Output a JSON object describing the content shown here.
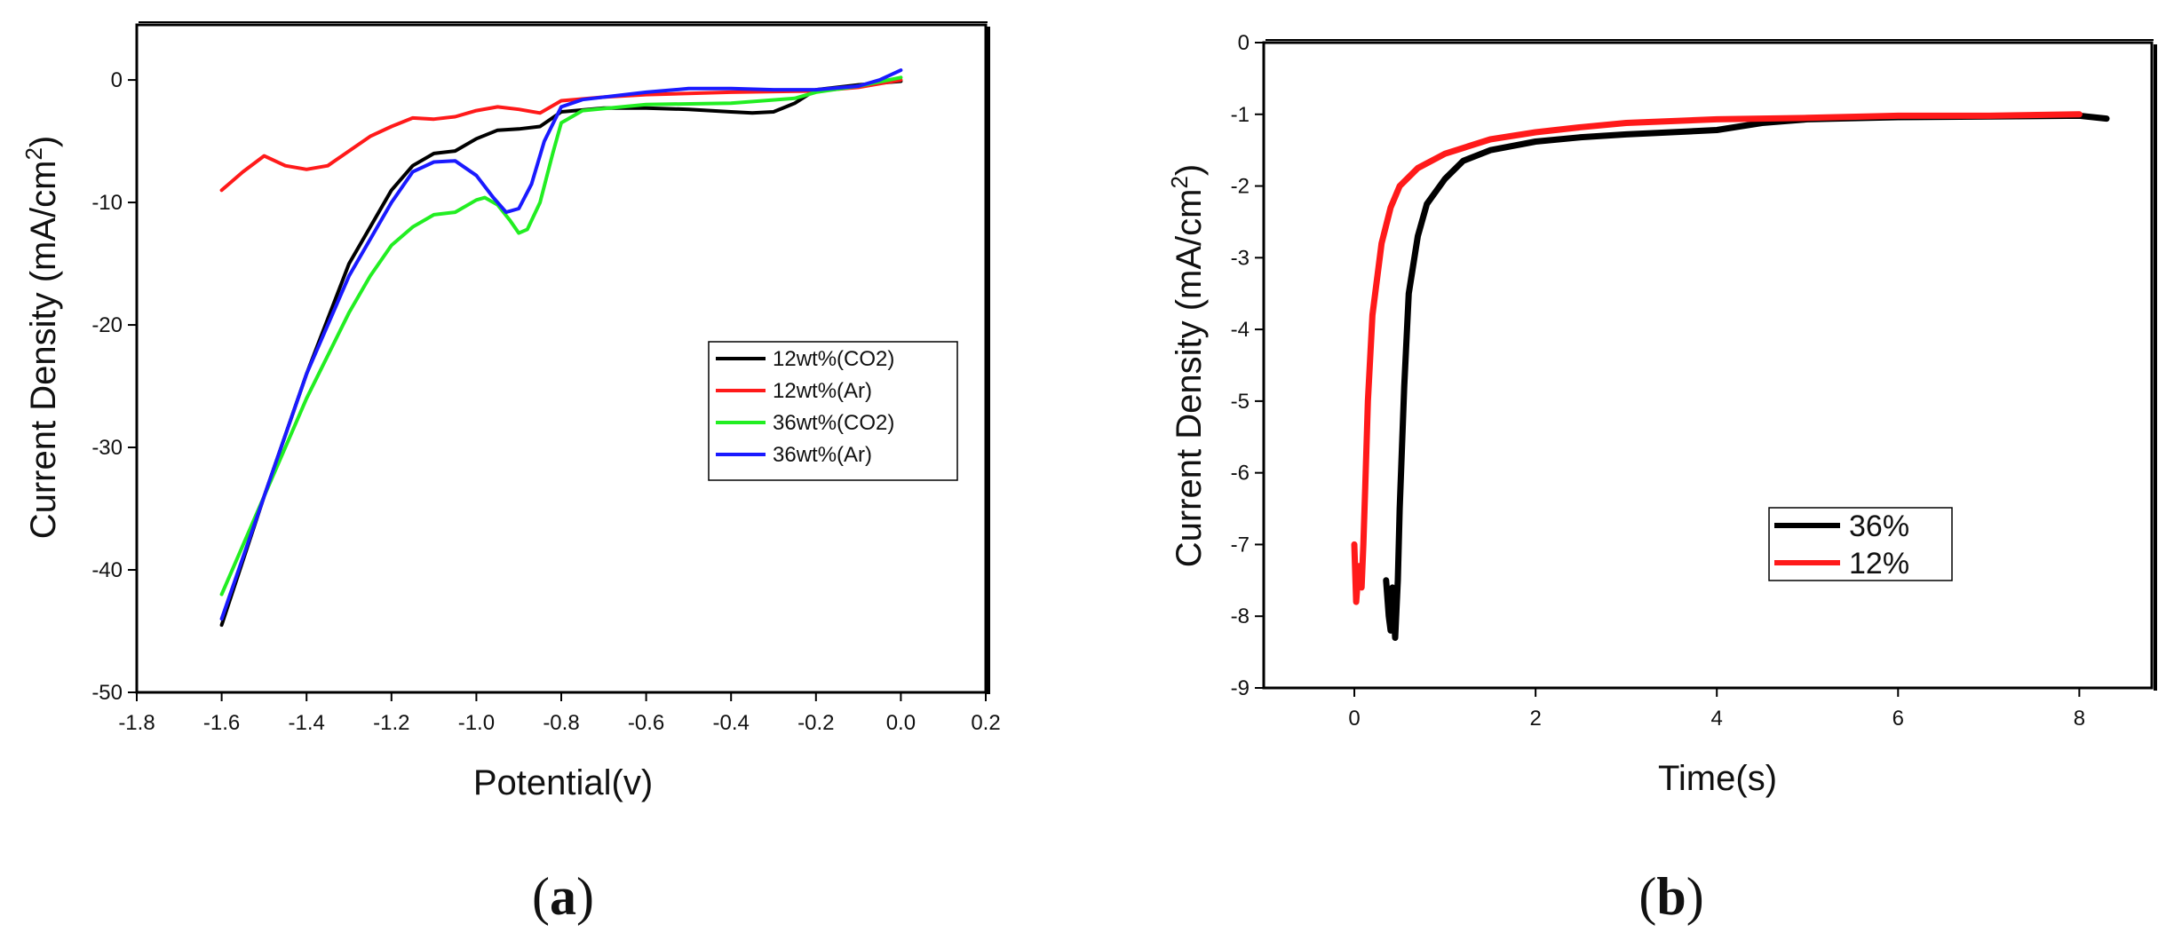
{
  "panels": [
    {
      "caption": {
        "open": "(",
        "letter": "a",
        "close": ")"
      },
      "chart_data": {
        "type": "line",
        "title": "",
        "xlabel": "Potential(v)",
        "ylabel": "Current Density (mA/cm",
        "ylabel_sup": "2",
        "ylabel_close": ")",
        "xlim": [
          -1.8,
          0.2
        ],
        "ylim": [
          -50,
          4.5
        ],
        "xticks": [
          -1.8,
          -1.6,
          -1.4,
          -1.2,
          -1.0,
          -0.8,
          -0.6,
          -0.4,
          -0.2,
          0.0,
          0.2
        ],
        "xtick_labels": [
          "-1.8",
          "-1.6",
          "-1.4",
          "-1.2",
          "-1.0",
          "-0.8",
          "-0.6",
          "-0.4",
          "-0.2",
          "0.0",
          "0.2"
        ],
        "yticks": [
          -50,
          -40,
          -30,
          -20,
          -10,
          0
        ],
        "ytick_labels": [
          "-50",
          "-40",
          "-30",
          "-20",
          "-10",
          "0"
        ],
        "legend_position": "center-right",
        "series": [
          {
            "name": "12wt%(CO2)",
            "color": "#000000",
            "points": [
              [
                -1.6,
                -44.5
              ],
              [
                -1.5,
                -34
              ],
              [
                -1.4,
                -24
              ],
              [
                -1.3,
                -15
              ],
              [
                -1.2,
                -9
              ],
              [
                -1.15,
                -7
              ],
              [
                -1.1,
                -6
              ],
              [
                -1.05,
                -5.8
              ],
              [
                -1.0,
                -4.8
              ],
              [
                -0.95,
                -4.1
              ],
              [
                -0.9,
                -4.0
              ],
              [
                -0.85,
                -3.8
              ],
              [
                -0.8,
                -2.6
              ],
              [
                -0.7,
                -2.3
              ],
              [
                -0.6,
                -2.3
              ],
              [
                -0.5,
                -2.4
              ],
              [
                -0.4,
                -2.6
              ],
              [
                -0.35,
                -2.7
              ],
              [
                -0.3,
                -2.6
              ],
              [
                -0.25,
                -1.9
              ],
              [
                -0.2,
                -0.8
              ],
              [
                -0.1,
                -0.4
              ],
              [
                0.0,
                -0.1
              ]
            ]
          },
          {
            "name": "12wt%(Ar)",
            "color": "#ff1a1a",
            "points": [
              [
                -1.6,
                -9
              ],
              [
                -1.55,
                -7.5
              ],
              [
                -1.5,
                -6.2
              ],
              [
                -1.45,
                -7
              ],
              [
                -1.4,
                -7.3
              ],
              [
                -1.35,
                -7
              ],
              [
                -1.3,
                -5.8
              ],
              [
                -1.25,
                -4.6
              ],
              [
                -1.2,
                -3.8
              ],
              [
                -1.15,
                -3.1
              ],
              [
                -1.1,
                -3.2
              ],
              [
                -1.05,
                -3.0
              ],
              [
                -1.0,
                -2.5
              ],
              [
                -0.95,
                -2.2
              ],
              [
                -0.9,
                -2.4
              ],
              [
                -0.85,
                -2.7
              ],
              [
                -0.8,
                -1.7
              ],
              [
                -0.7,
                -1.4
              ],
              [
                -0.6,
                -1.2
              ],
              [
                -0.5,
                -1.1
              ],
              [
                -0.4,
                -1.0
              ],
              [
                -0.2,
                -0.9
              ],
              [
                -0.1,
                -0.6
              ],
              [
                0.0,
                0.0
              ]
            ]
          },
          {
            "name": "36wt%(CO2)",
            "color": "#22ee22",
            "points": [
              [
                -1.6,
                -42
              ],
              [
                -1.5,
                -34
              ],
              [
                -1.4,
                -26
              ],
              [
                -1.3,
                -19
              ],
              [
                -1.25,
                -16
              ],
              [
                -1.2,
                -13.5
              ],
              [
                -1.15,
                -12
              ],
              [
                -1.1,
                -11
              ],
              [
                -1.05,
                -10.8
              ],
              [
                -1.0,
                -9.8
              ],
              [
                -0.98,
                -9.6
              ],
              [
                -0.95,
                -10.2
              ],
              [
                -0.92,
                -11.5
              ],
              [
                -0.9,
                -12.5
              ],
              [
                -0.88,
                -12.2
              ],
              [
                -0.85,
                -10
              ],
              [
                -0.82,
                -6
              ],
              [
                -0.8,
                -3.5
              ],
              [
                -0.75,
                -2.5
              ],
              [
                -0.6,
                -2.0
              ],
              [
                -0.4,
                -1.9
              ],
              [
                -0.25,
                -1.5
              ],
              [
                -0.2,
                -1.0
              ],
              [
                -0.1,
                -0.5
              ],
              [
                0.0,
                0.2
              ]
            ]
          },
          {
            "name": "36wt%(Ar)",
            "color": "#1a1aff",
            "points": [
              [
                -1.6,
                -44
              ],
              [
                -1.5,
                -34
              ],
              [
                -1.4,
                -24
              ],
              [
                -1.3,
                -16
              ],
              [
                -1.2,
                -10
              ],
              [
                -1.15,
                -7.5
              ],
              [
                -1.1,
                -6.7
              ],
              [
                -1.05,
                -6.6
              ],
              [
                -1.0,
                -7.8
              ],
              [
                -0.96,
                -9.6
              ],
              [
                -0.93,
                -10.8
              ],
              [
                -0.9,
                -10.5
              ],
              [
                -0.87,
                -8.5
              ],
              [
                -0.84,
                -5
              ],
              [
                -0.8,
                -2.2
              ],
              [
                -0.75,
                -1.6
              ],
              [
                -0.6,
                -1.0
              ],
              [
                -0.5,
                -0.7
              ],
              [
                -0.4,
                -0.7
              ],
              [
                -0.3,
                -0.8
              ],
              [
                -0.2,
                -0.8
              ],
              [
                -0.1,
                -0.5
              ],
              [
                -0.05,
                0.0
              ],
              [
                0.0,
                0.8
              ]
            ]
          }
        ]
      }
    },
    {
      "caption": {
        "open": "(",
        "letter": "b",
        "close": ")"
      },
      "chart_data": {
        "type": "line",
        "title": "",
        "xlabel": "Time(s)",
        "ylabel": "Current Density (mA/cm",
        "ylabel_sup": "2",
        "ylabel_close": ")",
        "xlim": [
          -1.0,
          8.8
        ],
        "ylim": [
          -9,
          0
        ],
        "xticks": [
          0,
          2,
          4,
          6,
          8
        ],
        "xtick_labels": [
          "0",
          "2",
          "4",
          "6",
          "8"
        ],
        "yticks": [
          -9,
          -8,
          -7,
          -6,
          -5,
          -4,
          -3,
          -2,
          -1,
          0
        ],
        "ytick_labels": [
          "-9",
          "-8",
          "-7",
          "-6",
          "-5",
          "-4",
          "-3",
          "-2",
          "-1",
          "0"
        ],
        "legend_position": "center-right",
        "series": [
          {
            "name": "36%",
            "color": "#000000",
            "points": [
              [
                0.35,
                -7.5
              ],
              [
                0.38,
                -8.0
              ],
              [
                0.4,
                -8.2
              ],
              [
                0.42,
                -7.6
              ],
              [
                0.45,
                -8.3
              ],
              [
                0.48,
                -7.5
              ],
              [
                0.5,
                -6.5
              ],
              [
                0.55,
                -4.8
              ],
              [
                0.6,
                -3.5
              ],
              [
                0.7,
                -2.7
              ],
              [
                0.8,
                -2.25
              ],
              [
                1.0,
                -1.9
              ],
              [
                1.2,
                -1.65
              ],
              [
                1.5,
                -1.5
              ],
              [
                2.0,
                -1.38
              ],
              [
                2.5,
                -1.32
              ],
              [
                3.0,
                -1.28
              ],
              [
                3.5,
                -1.25
              ],
              [
                4.0,
                -1.22
              ],
              [
                4.5,
                -1.12
              ],
              [
                5.0,
                -1.07
              ],
              [
                6.0,
                -1.04
              ],
              [
                7.0,
                -1.03
              ],
              [
                8.0,
                -1.02
              ],
              [
                8.3,
                -1.06
              ]
            ]
          },
          {
            "name": "12%",
            "color": "#ff1a1a",
            "points": [
              [
                0.0,
                -7.0
              ],
              [
                0.02,
                -7.8
              ],
              [
                0.05,
                -7.3
              ],
              [
                0.08,
                -7.6
              ],
              [
                0.1,
                -7.0
              ],
              [
                0.12,
                -6.2
              ],
              [
                0.15,
                -5.0
              ],
              [
                0.2,
                -3.8
              ],
              [
                0.3,
                -2.8
              ],
              [
                0.4,
                -2.3
              ],
              [
                0.5,
                -2.0
              ],
              [
                0.7,
                -1.75
              ],
              [
                1.0,
                -1.55
              ],
              [
                1.5,
                -1.35
              ],
              [
                2.0,
                -1.25
              ],
              [
                2.5,
                -1.18
              ],
              [
                3.0,
                -1.12
              ],
              [
                4.0,
                -1.07
              ],
              [
                5.0,
                -1.05
              ],
              [
                6.0,
                -1.02
              ],
              [
                7.0,
                -1.02
              ],
              [
                8.0,
                -1.0
              ]
            ]
          }
        ]
      }
    }
  ]
}
